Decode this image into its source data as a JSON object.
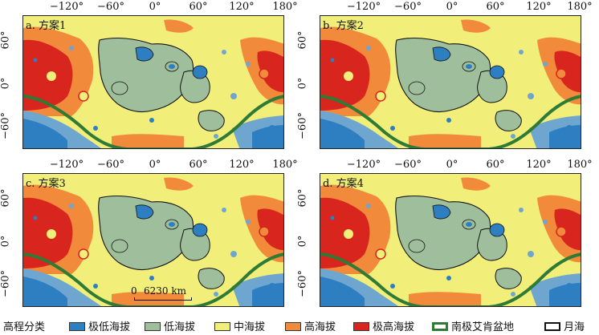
{
  "x_ticks": [
    "−120°",
    "−60°",
    "0°",
    "60°",
    "120°",
    "180°"
  ],
  "y_ticks": [
    "60°",
    "0°",
    "−60°"
  ],
  "panels": [
    {
      "label": "a. 方案1"
    },
    {
      "label": "b. 方案2"
    },
    {
      "label": "c. 方案3"
    },
    {
      "label": "d. 方案4"
    }
  ],
  "scale_bar": {
    "zero": "0",
    "distance": "6230 km"
  },
  "legend": {
    "title": "高程分类",
    "items": [
      {
        "label": "极低海拔",
        "color": "#2e7fc2"
      },
      {
        "label": "低海拔",
        "color": "#9fbf9c"
      },
      {
        "label": "中海拔",
        "color": "#f2ee7a"
      },
      {
        "label": "高海拔",
        "color": "#f28a3c"
      },
      {
        "label": "极高海拔",
        "color": "#d8251e"
      },
      {
        "label": "南极艾肯盆地",
        "color": "#2f7a34"
      },
      {
        "label": "月海",
        "color": "#111111"
      }
    ]
  }
}
